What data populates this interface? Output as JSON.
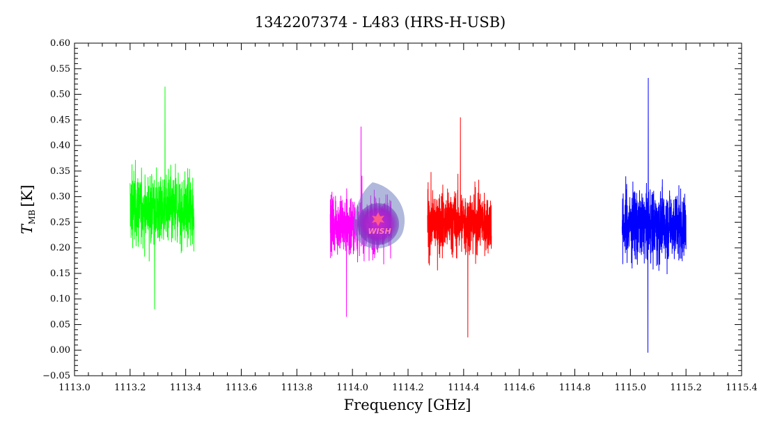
{
  "chart_data": {
    "type": "line",
    "title": "1342207374 - L483 (HRS-H-USB)",
    "xlabel": "Frequency [GHz]",
    "ylabel_main": "T",
    "ylabel_sub": "MB",
    "ylabel_unit": "[K]",
    "xlim": [
      1113.0,
      1115.4
    ],
    "ylim": [
      -0.05,
      0.6
    ],
    "x_ticks": [
      1113.0,
      1113.2,
      1113.4,
      1113.6,
      1113.8,
      1114.0,
      1114.2,
      1114.4,
      1114.6,
      1114.8,
      1115.0,
      1115.2,
      1115.4
    ],
    "x_tick_labels": [
      "1113.0",
      "1113.2",
      "1113.4",
      "1113.6",
      "1113.8",
      "1114.0",
      "1114.2",
      "1114.4",
      "1114.6",
      "1114.8",
      "1115.0",
      "1115.2",
      "1115.4"
    ],
    "y_ticks": [
      -0.05,
      0.0,
      0.05,
      0.1,
      0.15,
      0.2,
      0.25,
      0.3,
      0.35,
      0.4,
      0.45,
      0.5,
      0.55,
      0.6
    ],
    "y_tick_labels": [
      "−0.05",
      "0.00",
      "0.05",
      "0.10",
      "0.15",
      "0.20",
      "0.25",
      "0.30",
      "0.35",
      "0.40",
      "0.45",
      "0.50",
      "0.55",
      "0.60"
    ],
    "grid": false,
    "series": [
      {
        "color": "#00ff00",
        "x_range": [
          1113.2,
          1113.43
        ],
        "mean": 0.275,
        "noise": 0.09,
        "min": 0.08,
        "max": 0.515
      },
      {
        "color": "#ff00ff",
        "x_range": [
          1113.92,
          1114.14
        ],
        "mean": 0.245,
        "noise": 0.07,
        "min": 0.065,
        "max": 0.437
      },
      {
        "color": "#ff0000",
        "x_range": [
          1114.27,
          1114.5
        ],
        "mean": 0.25,
        "noise": 0.08,
        "min": 0.025,
        "max": 0.455
      },
      {
        "color": "#0000ff",
        "x_range": [
          1114.97,
          1115.2
        ],
        "mean": 0.245,
        "noise": 0.09,
        "min": -0.005,
        "max": 0.532
      }
    ],
    "watermark_text": "WISH"
  }
}
